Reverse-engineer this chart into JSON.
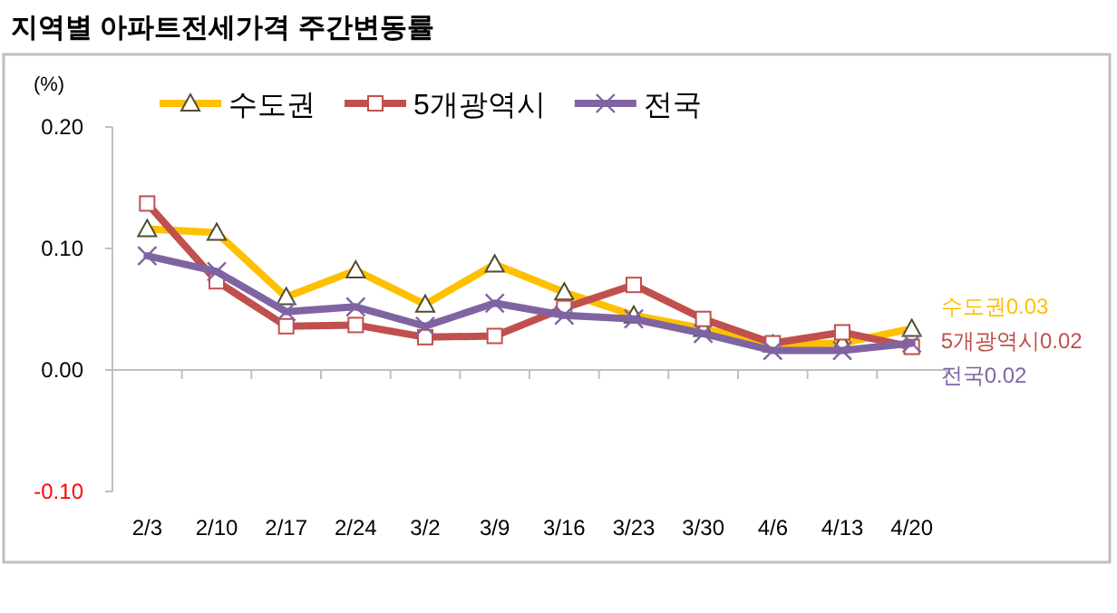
{
  "chart_data": {
    "type": "line",
    "title": "지역별 아파트전세가격 주간변동률",
    "ylabel": "(%)",
    "categories": [
      "2/3",
      "2/10",
      "2/17",
      "2/24",
      "3/2",
      "3/9",
      "3/16",
      "3/23",
      "3/30",
      "4/6",
      "4/13",
      "4/20"
    ],
    "series": [
      {
        "name": "수도권",
        "color": "#ffc000",
        "marker": "triangle",
        "values": [
          0.116,
          0.113,
          0.06,
          0.082,
          0.054,
          0.087,
          0.064,
          0.045,
          0.034,
          0.021,
          0.022,
          0.034
        ]
      },
      {
        "name": "5개광역시",
        "color": "#c0504d",
        "marker": "square",
        "values": [
          0.137,
          0.073,
          0.036,
          0.037,
          0.027,
          0.028,
          0.051,
          0.07,
          0.042,
          0.022,
          0.031,
          0.019
        ]
      },
      {
        "name": "전국",
        "color": "#8064a2",
        "marker": "cross",
        "values": [
          0.094,
          0.081,
          0.048,
          0.052,
          0.036,
          0.055,
          0.045,
          0.042,
          0.03,
          0.016,
          0.016,
          0.022
        ]
      }
    ],
    "ylim": [
      -0.1,
      0.2
    ],
    "yticks": [
      {
        "value": -0.1,
        "label": "-0.10"
      },
      {
        "value": 0,
        "label": "0.00"
      },
      {
        "value": 0.1,
        "label": "0.10"
      },
      {
        "value": 0.2,
        "label": "0.20"
      }
    ],
    "annotations": [
      {
        "text": "수도권0.03",
        "x": "4/20",
        "y": 0.034
      },
      {
        "text": "5개광역시0.02",
        "x": "4/20",
        "y": 0.019
      },
      {
        "text": "전국0.02",
        "x": "4/20",
        "y": 0.022
      }
    ],
    "legend": "top"
  }
}
